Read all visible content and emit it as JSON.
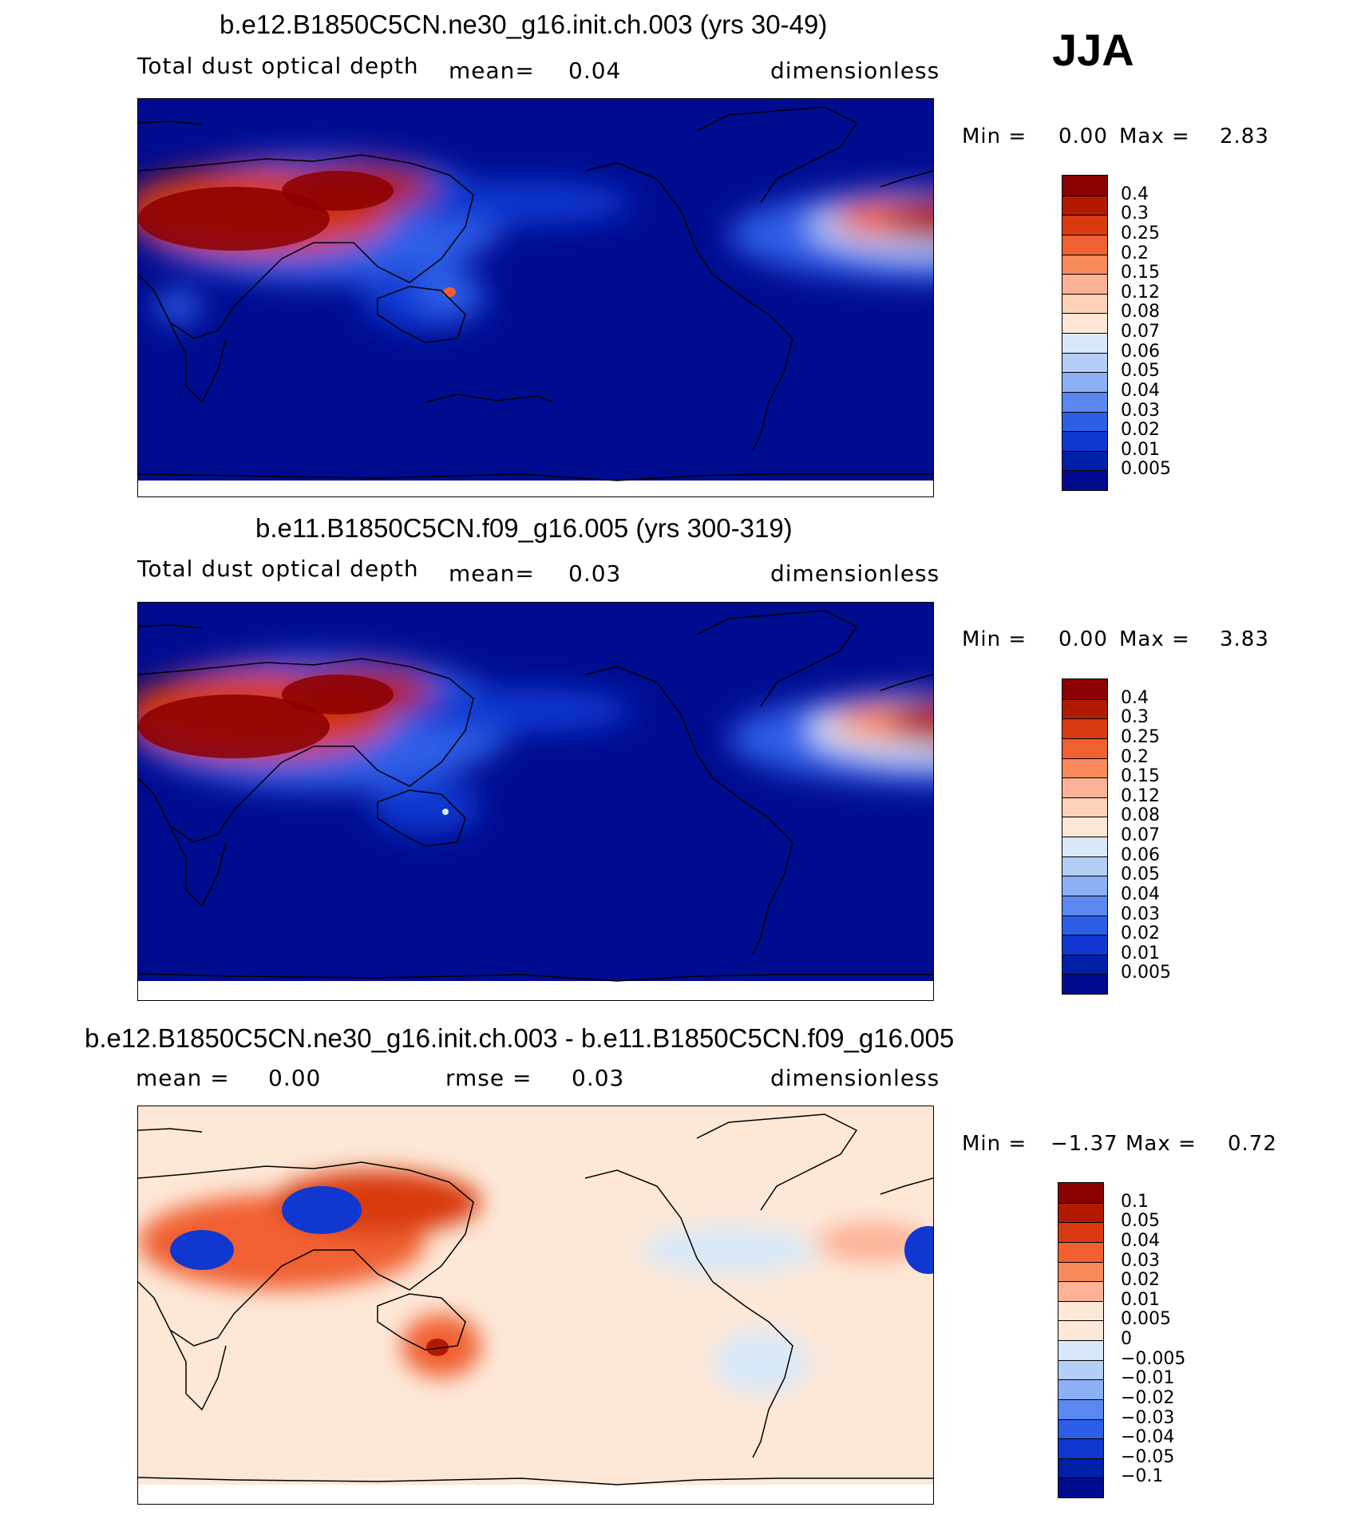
{
  "season": "JJA",
  "panels": [
    {
      "title": "b.e12.B1850C5CN.ne30_g16.init.ch.003 (yrs 30-49)",
      "left_label": "Total dust optical depth",
      "mid_label": "mean=",
      "mid_value": "0.04",
      "units": "dimensionless",
      "min_label": "Min =",
      "min_value": "0.00",
      "max_label": "Max =",
      "max_value": "2.83",
      "colorbar_labels": [
        "0.4",
        "0.3",
        "0.25",
        "0.2",
        "0.15",
        "0.12",
        "0.08",
        "0.07",
        "0.06",
        "0.05",
        "0.04",
        "0.03",
        "0.02",
        "0.01",
        "0.005"
      ]
    },
    {
      "title": "b.e11.B1850C5CN.f09_g16.005 (yrs 300-319)",
      "left_label": "Total dust optical depth",
      "mid_label": "mean=",
      "mid_value": "0.03",
      "units": "dimensionless",
      "min_label": "Min =",
      "min_value": "0.00",
      "max_label": "Max =",
      "max_value": "3.83",
      "colorbar_labels": [
        "0.4",
        "0.3",
        "0.25",
        "0.2",
        "0.15",
        "0.12",
        "0.08",
        "0.07",
        "0.06",
        "0.05",
        "0.04",
        "0.03",
        "0.02",
        "0.01",
        "0.005"
      ]
    },
    {
      "title": "b.e12.B1850C5CN.ne30_g16.init.ch.003 - b.e11.B1850C5CN.f09_g16.005",
      "left_label": "mean =",
      "left_value": "0.00",
      "mid_label": "rmse =",
      "mid_value": "0.03",
      "units": "dimensionless",
      "min_label": "Min =",
      "min_value": "−1.37",
      "max_label": "Max =",
      "max_value": "0.72",
      "colorbar_labels": [
        "0.1",
        "0.05",
        "0.04",
        "0.03",
        "0.02",
        "0.01",
        "0.005",
        "0",
        "−0.005",
        "−0.01",
        "−0.02",
        "−0.03",
        "−0.04",
        "−0.05",
        "−0.1"
      ]
    }
  ],
  "colors": {
    "abs_scale": [
      "#8b0000",
      "#b21a00",
      "#d93a10",
      "#f06030",
      "#f98a5c",
      "#fcb296",
      "#fdd0b8",
      "#fde8d8",
      "#d8e8f8",
      "#b4cef8",
      "#8cb0f6",
      "#5a88f0",
      "#2d5ee8",
      "#1038d0",
      "#0020a8",
      "#000c90"
    ],
    "diff_scale": [
      "#8b0000",
      "#b21a00",
      "#d93a10",
      "#f06030",
      "#f98a5c",
      "#fcb296",
      "#fde8d8",
      "#fde8d8",
      "#d8e8f8",
      "#b4cef8",
      "#8cb0f6",
      "#5a88f0",
      "#2d5ee8",
      "#1038d0",
      "#0020a8",
      "#000c90"
    ],
    "ocean_abs": "#000c90",
    "ocean_diff": "#fde8d8"
  }
}
